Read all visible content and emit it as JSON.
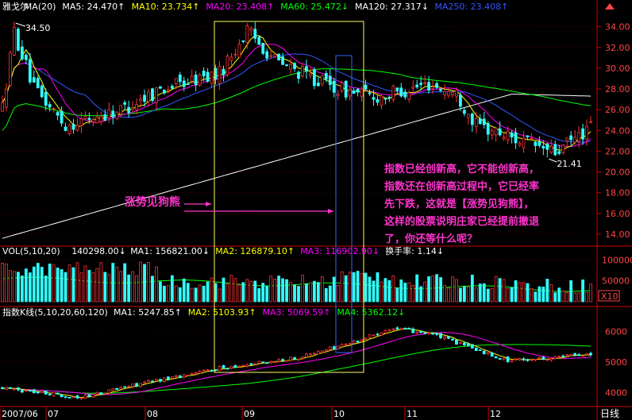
{
  "stock_name": "雅戈尔",
  "chart_data": [
    {
      "type": "candlestick",
      "panel": "price",
      "legend": [
        {
          "text": "雅戈尔",
          "color": "#ffffff"
        },
        {
          "text": "MA(20)",
          "color": "#ffffff"
        },
        {
          "text": "MA5: 24.470↑",
          "color": "#ffffff"
        },
        {
          "text": "MA10: 23.734↑",
          "color": "#ffff00"
        },
        {
          "text": "MA20: 23.408↑",
          "color": "#ff00ff"
        },
        {
          "text": "MA60: 25.472↓",
          "color": "#00ff00"
        },
        {
          "text": "MA120: 27.317↓",
          "color": "#ffffff"
        },
        {
          "text": "MA250: 23.408↑",
          "color": "#3355ff"
        }
      ],
      "ylim": [
        13,
        35.2
      ],
      "y_ticks": [
        "34.00",
        "32.00",
        "30.00",
        "28.00",
        "26.00",
        "24.00",
        "22.00",
        "20.00",
        "18.00",
        "16.00",
        "14.00"
      ],
      "y_tick_values": [
        34,
        32,
        30,
        28,
        26,
        24,
        22,
        20,
        18,
        16,
        14
      ],
      "annotations": [
        {
          "text": "34.50",
          "label_for": "high",
          "value": 34.5
        },
        {
          "text": "21.41",
          "label_for": "low",
          "value": 21.41
        }
      ],
      "key_points": [
        {
          "label": "start",
          "value": 24.2
        },
        {
          "label": "high",
          "value": 34.5
        },
        {
          "label": "peak",
          "value": 33.6
        },
        {
          "label": "low",
          "value": 21.41
        },
        {
          "label": "end",
          "value": 24.6
        }
      ],
      "ma_end_values": {
        "MA5": 24.47,
        "MA10": 23.734,
        "MA20": 23.408,
        "MA60": 25.472,
        "MA120": 27.317,
        "MA250": 23.408
      }
    },
    {
      "type": "bar",
      "panel": "volume",
      "legend": [
        {
          "text": "VOL(5,10,20)",
          "color": "#ffffff"
        },
        {
          "text": "140298.00↓",
          "color": "#ffffff"
        },
        {
          "text": "MA1: 156821.00↓",
          "color": "#ffffff"
        },
        {
          "text": "MA2: 126879.10↑",
          "color": "#ffff00"
        },
        {
          "text": "MA3: 116902.90↓",
          "color": "#ff00ff"
        },
        {
          "text": "换手率: 1.14↓",
          "color": "#ffffff"
        }
      ],
      "y_ticks": [
        "100000",
        "50000"
      ],
      "y_tick_values": [
        100000,
        50000
      ],
      "unit_badge": "X10",
      "last_value": 140298
    },
    {
      "type": "candlestick",
      "panel": "index",
      "legend": [
        {
          "text": "指数K线(5,10,20,60,120)",
          "color": "#ffffff"
        },
        {
          "text": "MA1: 5247.85↑",
          "color": "#ffffff"
        },
        {
          "text": "MA2: 5103.93↑",
          "color": "#ffff00"
        },
        {
          "text": "MA3: 5069.59↑",
          "color": "#ff00ff"
        },
        {
          "text": "MA4: 5362.12↓",
          "color": "#00ff00"
        }
      ],
      "ylim": [
        3600,
        6450
      ],
      "y_ticks": [
        "6000",
        "5000",
        "4000"
      ],
      "y_tick_values": [
        6000,
        5000,
        4000
      ],
      "key_points": [
        {
          "label": "start",
          "value": 4150
        },
        {
          "label": "peak",
          "value": 6100
        },
        {
          "label": "end",
          "value": 5300
        }
      ]
    }
  ],
  "x_axis": {
    "labels": [
      "2007/06",
      "07",
      "08",
      "09",
      "10",
      "11",
      "12"
    ],
    "right_label": "日线"
  },
  "annotations": {
    "left_label": "涨势见狗熊",
    "right_text": [
      "指数已经创新高，它不能创新高，",
      "指数还在创新高过程中，它已经率",
      "先下跌，这就是【涨势见狗熊】，",
      "这样的股票说明庄家已经提前撤退",
      "了，你还等什么呢？"
    ]
  },
  "colors": {
    "up": "#ff3333",
    "down": "#33ffff",
    "grid": "#800000",
    "axis": "#cc0000",
    "box_yellow": "#ffff66",
    "box_blue": "#3366ff",
    "annotation": "#ff33cc"
  }
}
